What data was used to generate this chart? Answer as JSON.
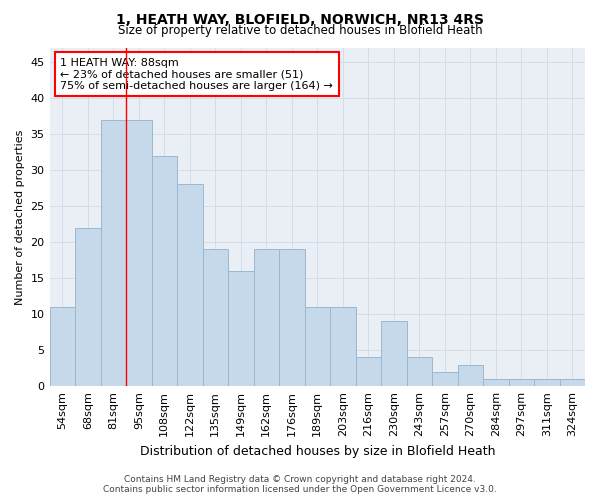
{
  "title": "1, HEATH WAY, BLOFIELD, NORWICH, NR13 4RS",
  "subtitle": "Size of property relative to detached houses in Blofield Heath",
  "xlabel": "Distribution of detached houses by size in Blofield Heath",
  "ylabel": "Number of detached properties",
  "categories": [
    "54sqm",
    "68sqm",
    "81sqm",
    "95sqm",
    "108sqm",
    "122sqm",
    "135sqm",
    "149sqm",
    "162sqm",
    "176sqm",
    "189sqm",
    "203sqm",
    "216sqm",
    "230sqm",
    "243sqm",
    "257sqm",
    "270sqm",
    "284sqm",
    "297sqm",
    "311sqm",
    "324sqm"
  ],
  "values": [
    11,
    22,
    37,
    37,
    32,
    28,
    19,
    16,
    19,
    19,
    11,
    11,
    4,
    9,
    4,
    2,
    3,
    1,
    1,
    1,
    1
  ],
  "bar_color": "#c6d9ea",
  "bar_edge_color": "#9ab8d0",
  "annotation_box_text": "1 HEATH WAY: 88sqm\n← 23% of detached houses are smaller (51)\n75% of semi-detached houses are larger (164) →",
  "grid_color": "#d4dce8",
  "background_color": "#eaeff5",
  "ylim": [
    0,
    47
  ],
  "yticks": [
    0,
    5,
    10,
    15,
    20,
    25,
    30,
    35,
    40,
    45
  ],
  "footer_line1": "Contains HM Land Registry data © Crown copyright and database right 2024.",
  "footer_line2": "Contains public sector information licensed under the Open Government Licence v3.0.",
  "red_line_x": 2.5,
  "figwidth": 6.0,
  "figheight": 5.0,
  "dpi": 100
}
